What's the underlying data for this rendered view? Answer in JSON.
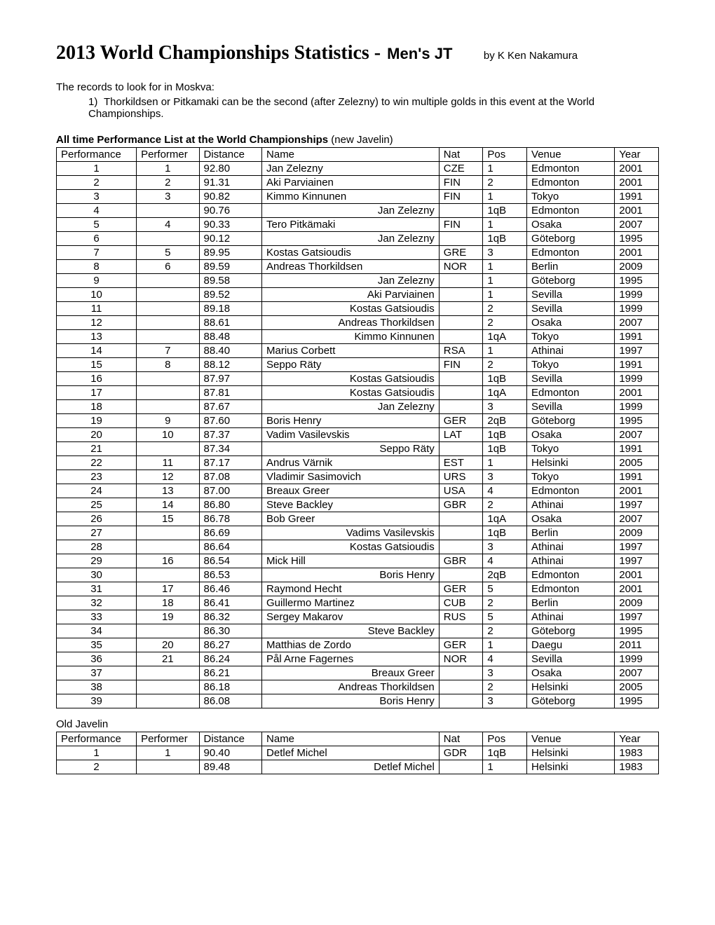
{
  "title_main": "2013 World Championships Statistics - ",
  "title_sub": "Men's JT",
  "byline": "by K Ken Nakamura",
  "intro": "The records to look for in Moskva:",
  "records": [
    "Thorkildsen or Pitkamaki can be the second (after Zelezny) to win multiple golds in this event at the World Championships."
  ],
  "section_heading_bold": "All time Performance List at the World Championships ",
  "section_heading_rest": "(new Javelin)",
  "columns": [
    "Performance",
    "Performer",
    "Distance",
    "Name",
    "Nat",
    "Pos",
    "Venue",
    "Year"
  ],
  "rows": [
    {
      "perf": "1",
      "pfmr": "1",
      "dist": "92.80",
      "name": "Jan Zelezny",
      "align": "left",
      "nat": "CZE",
      "pos": "1",
      "venue": "Edmonton",
      "year": "2001"
    },
    {
      "perf": "2",
      "pfmr": "2",
      "dist": "91.31",
      "name": "Aki Parviainen",
      "align": "left",
      "nat": "FIN",
      "pos": "2",
      "venue": "Edmonton",
      "year": "2001"
    },
    {
      "perf": "3",
      "pfmr": "3",
      "dist": "90.82",
      "name": "Kimmo Kinnunen",
      "align": "left",
      "nat": "FIN",
      "pos": "1",
      "venue": "Tokyo",
      "year": "1991"
    },
    {
      "perf": "4",
      "pfmr": "",
      "dist": "90.76",
      "name": "Jan Zelezny",
      "align": "right",
      "nat": "",
      "pos": "1qB",
      "venue": "Edmonton",
      "year": "2001"
    },
    {
      "perf": "5",
      "pfmr": "4",
      "dist": "90.33",
      "name": "Tero Pitkämaki",
      "align": "left",
      "nat": "FIN",
      "pos": "1",
      "venue": "Osaka",
      "year": "2007"
    },
    {
      "perf": "6",
      "pfmr": "",
      "dist": "90.12",
      "name": "Jan Zelezny",
      "align": "right",
      "nat": "",
      "pos": "1qB",
      "venue": "Göteborg",
      "year": "1995"
    },
    {
      "perf": "7",
      "pfmr": "5",
      "dist": "89.95",
      "name": "Kostas Gatsioudis",
      "align": "left",
      "nat": "GRE",
      "pos": "3",
      "venue": "Edmonton",
      "year": "2001"
    },
    {
      "perf": "8",
      "pfmr": "6",
      "dist": "89.59",
      "name": "Andreas Thorkildsen",
      "align": "left",
      "nat": "NOR",
      "pos": "1",
      "venue": "Berlin",
      "year": "2009"
    },
    {
      "perf": "9",
      "pfmr": "",
      "dist": "89.58",
      "name": "Jan Zelezny",
      "align": "right",
      "nat": "",
      "pos": "1",
      "venue": "Göteborg",
      "year": "1995"
    },
    {
      "perf": "10",
      "pfmr": "",
      "dist": "89.52",
      "name": "Aki Parviainen",
      "align": "right",
      "nat": "",
      "pos": "1",
      "venue": "Sevilla",
      "year": "1999"
    },
    {
      "perf": "11",
      "pfmr": "",
      "dist": "89.18",
      "name": "Kostas Gatsioudis",
      "align": "right",
      "nat": "",
      "pos": "2",
      "venue": "Sevilla",
      "year": "1999"
    },
    {
      "perf": "12",
      "pfmr": "",
      "dist": "88.61",
      "name": "Andreas Thorkildsen",
      "align": "right",
      "nat": "",
      "pos": "2",
      "venue": "Osaka",
      "year": "2007"
    },
    {
      "perf": "13",
      "pfmr": "",
      "dist": "88.48",
      "name": "Kimmo Kinnunen",
      "align": "right",
      "nat": "",
      "pos": "1qA",
      "venue": "Tokyo",
      "year": "1991"
    },
    {
      "perf": "14",
      "pfmr": "7",
      "dist": "88.40",
      "name": "Marius Corbett",
      "align": "left",
      "nat": "RSA",
      "pos": "1",
      "venue": "Athinai",
      "year": "1997"
    },
    {
      "perf": "15",
      "pfmr": "8",
      "dist": "88.12",
      "name": "Seppo Räty",
      "align": "left",
      "nat": "FIN",
      "pos": "2",
      "venue": "Tokyo",
      "year": "1991"
    },
    {
      "perf": "16",
      "pfmr": "",
      "dist": "87.97",
      "name": "Kostas Gatsioudis",
      "align": "right",
      "nat": "",
      "pos": "1qB",
      "venue": "Sevilla",
      "year": "1999"
    },
    {
      "perf": "17",
      "pfmr": "",
      "dist": "87.81",
      "name": "Kostas Gatsioudis",
      "align": "right",
      "nat": "",
      "pos": "1qA",
      "venue": "Edmonton",
      "year": "2001"
    },
    {
      "perf": "18",
      "pfmr": "",
      "dist": "87.67",
      "name": "Jan Zelezny",
      "align": "right",
      "nat": "",
      "pos": "3",
      "venue": "Sevilla",
      "year": "1999"
    },
    {
      "perf": "19",
      "pfmr": "9",
      "dist": "87.60",
      "name": "Boris Henry",
      "align": "left",
      "nat": "GER",
      "pos": "2qB",
      "venue": "Göteborg",
      "year": "1995"
    },
    {
      "perf": "20",
      "pfmr": "10",
      "dist": "87.37",
      "name": "Vadim Vasilevskis",
      "align": "left",
      "nat": "LAT",
      "pos": "1qB",
      "venue": "Osaka",
      "year": "2007"
    },
    {
      "perf": "21",
      "pfmr": "",
      "dist": "87.34",
      "name": "Seppo Räty",
      "align": "right",
      "nat": "",
      "pos": "1qB",
      "venue": "Tokyo",
      "year": "1991"
    },
    {
      "perf": "22",
      "pfmr": "11",
      "dist": "87.17",
      "name": "Andrus Värnik",
      "align": "left",
      "nat": "EST",
      "pos": "1",
      "venue": "Helsinki",
      "year": "2005"
    },
    {
      "perf": "23",
      "pfmr": "12",
      "dist": "87.08",
      "name": "Vladimir Sasimovich",
      "align": "left",
      "nat": "URS",
      "pos": "3",
      "venue": "Tokyo",
      "year": "1991"
    },
    {
      "perf": "24",
      "pfmr": "13",
      "dist": "87.00",
      "name": "Breaux Greer",
      "align": "left",
      "nat": "USA",
      "pos": "4",
      "venue": "Edmonton",
      "year": "2001"
    },
    {
      "perf": "25",
      "pfmr": "14",
      "dist": "86.80",
      "name": "Steve Backley",
      "align": "left",
      "nat": "GBR",
      "pos": "2",
      "venue": "Athinai",
      "year": "1997"
    },
    {
      "perf": "26",
      "pfmr": "15",
      "dist": "86.78",
      "name": "Bob Greer",
      "align": "left",
      "nat": "",
      "pos": "1qA",
      "venue": "Osaka",
      "year": "2007"
    },
    {
      "perf": "27",
      "pfmr": "",
      "dist": "86.69",
      "name": "Vadims Vasilevskis",
      "align": "right",
      "nat": "",
      "pos": "1qB",
      "venue": "Berlin",
      "year": "2009"
    },
    {
      "perf": "28",
      "pfmr": "",
      "dist": "86.64",
      "name": "Kostas Gatsioudis",
      "align": "right",
      "nat": "",
      "pos": "3",
      "venue": "Athinai",
      "year": "1997"
    },
    {
      "perf": "29",
      "pfmr": "16",
      "dist": "86.54",
      "name": "Mick Hill",
      "align": "left",
      "nat": "GBR",
      "pos": "4",
      "venue": "Athinai",
      "year": "1997"
    },
    {
      "perf": "30",
      "pfmr": "",
      "dist": "86.53",
      "name": "Boris Henry",
      "align": "right",
      "nat": "",
      "pos": "2qB",
      "venue": "Edmonton",
      "year": "2001"
    },
    {
      "perf": "31",
      "pfmr": "17",
      "dist": "86.46",
      "name": "Raymond Hecht",
      "align": "left",
      "nat": "GER",
      "pos": "5",
      "venue": "Edmonton",
      "year": "2001"
    },
    {
      "perf": "32",
      "pfmr": "18",
      "dist": "86.41",
      "name": "Guillermo Martinez",
      "align": "left",
      "nat": "CUB",
      "pos": "2",
      "venue": "Berlin",
      "year": "2009"
    },
    {
      "perf": "33",
      "pfmr": "19",
      "dist": "86.32",
      "name": "Sergey Makarov",
      "align": "left",
      "nat": "RUS",
      "pos": "5",
      "venue": "Athinai",
      "year": "1997"
    },
    {
      "perf": "34",
      "pfmr": "",
      "dist": "86.30",
      "name": "Steve Backley",
      "align": "right",
      "nat": "",
      "pos": "2",
      "venue": "Göteborg",
      "year": "1995"
    },
    {
      "perf": "35",
      "pfmr": "20",
      "dist": "86.27",
      "name": "Matthias de Zordo",
      "align": "left",
      "nat": "GER",
      "pos": "1",
      "venue": "Daegu",
      "year": "2011"
    },
    {
      "perf": "36",
      "pfmr": "21",
      "dist": "86.24",
      "name": "Pål Arne Fagernes",
      "align": "left",
      "nat": "NOR",
      "pos": "4",
      "venue": "Sevilla",
      "year": "1999"
    },
    {
      "perf": "37",
      "pfmr": "",
      "dist": "86.21",
      "name": "Breaux Greer",
      "align": "right",
      "nat": "",
      "pos": "3",
      "venue": "Osaka",
      "year": "2007"
    },
    {
      "perf": "38",
      "pfmr": "",
      "dist": "86.18",
      "name": "Andreas Thorkildsen",
      "align": "right",
      "nat": "",
      "pos": "2",
      "venue": "Helsinki",
      "year": "2005"
    },
    {
      "perf": "39",
      "pfmr": "",
      "dist": "86.08",
      "name": "Boris Henry",
      "align": "right",
      "nat": "",
      "pos": "3",
      "venue": "Göteborg",
      "year": "1995"
    }
  ],
  "old_label": "Old Javelin",
  "old_rows": [
    {
      "perf": "1",
      "pfmr": "1",
      "dist": "90.40",
      "name": "Detlef Michel",
      "align": "left",
      "nat": "GDR",
      "pos": "1qB",
      "venue": "Helsinki",
      "year": "1983"
    },
    {
      "perf": "2",
      "pfmr": "",
      "dist": "89.48",
      "name": "Detlef Michel",
      "align": "right",
      "nat": "",
      "pos": "1",
      "venue": "Helsinki",
      "year": "1983"
    }
  ]
}
